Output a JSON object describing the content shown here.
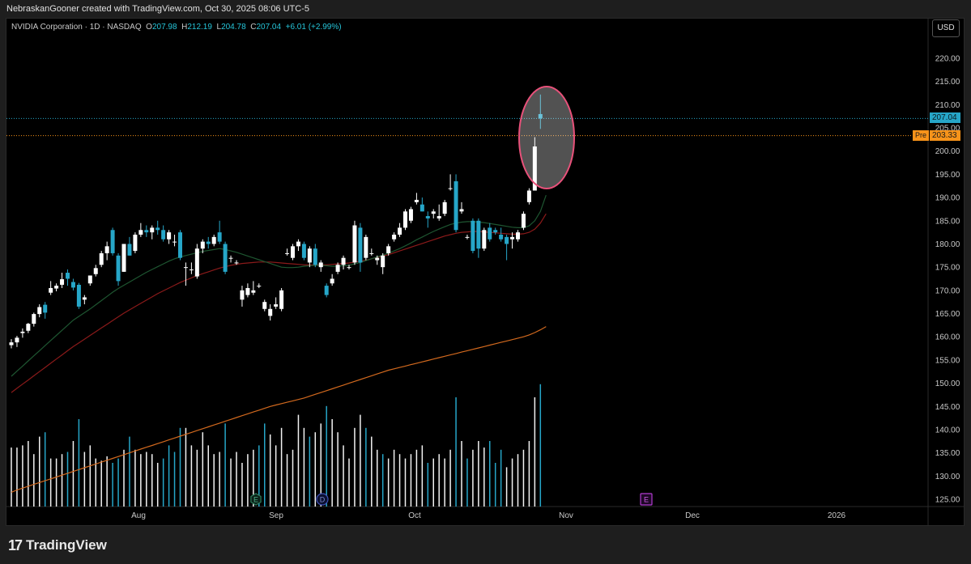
{
  "header": {
    "attribution": "NebraskanGooner created with TradingView.com, Oct 30, 2025 08:06 UTC-5"
  },
  "legend": {
    "symbol": "NVIDIA Corporation · 1D · NASDAQ",
    "open_label": "O",
    "open": "207.98",
    "high_label": "H",
    "high": "212.19",
    "low_label": "L",
    "low": "204.78",
    "close_label": "C",
    "close": "207.04",
    "change": "+6.01 (+2.99%)"
  },
  "currency_button": "USD",
  "last_price_tag": "207.04",
  "premarket": {
    "label": "Pre",
    "price": "203.33"
  },
  "footer": {
    "brand": "TradingView",
    "logo": "17"
  },
  "events": [
    {
      "letter": "E",
      "kind": "earnings-past"
    },
    {
      "letter": "D",
      "kind": "dividend"
    },
    {
      "letter": "E",
      "kind": "earnings-upcoming"
    }
  ],
  "colors": {
    "up_candle": "#ffffff",
    "down_candle": "#26a6c8",
    "ma_short": "#1e5631",
    "ma_mid": "#8b1a1a",
    "ma_long": "#d2691e",
    "highlight_ellipse": "#e8517a",
    "last_price_line": "#26a6c8",
    "premarket_line": "#f7931a"
  },
  "chart_data": {
    "type": "candlestick",
    "title": "",
    "y_axis_ticks": [
      "220.00",
      "215.00",
      "210.00",
      "205.00",
      "200.00",
      "195.00",
      "190.00",
      "185.00",
      "180.00",
      "175.00",
      "170.00",
      "165.00",
      "160.00",
      "155.00",
      "150.00",
      "145.00",
      "140.00",
      "135.00",
      "130.00",
      "125.00"
    ],
    "ylim": [
      123,
      224
    ],
    "x_axis_ticks": [
      "Aug",
      "Sep",
      "Oct",
      "Nov",
      "Dec",
      "2026"
    ],
    "last_price": 207.04,
    "premarket_price": 203.33,
    "candles": [
      {
        "o": 158.2,
        "h": 159.5,
        "l": 157.5,
        "c": 158.8
      },
      {
        "o": 158.8,
        "h": 160.2,
        "l": 157.8,
        "c": 159.8
      },
      {
        "o": 160.8,
        "h": 161.8,
        "l": 159.8,
        "c": 161.1
      },
      {
        "o": 161.3,
        "h": 163.0,
        "l": 160.8,
        "c": 162.8
      },
      {
        "o": 162.8,
        "h": 165.2,
        "l": 162.2,
        "c": 164.9
      },
      {
        "o": 164.9,
        "h": 167.0,
        "l": 164.2,
        "c": 166.4
      },
      {
        "o": 166.9,
        "h": 167.5,
        "l": 163.9,
        "c": 165.2
      },
      {
        "o": 169.5,
        "h": 172.0,
        "l": 169.0,
        "c": 170.5
      },
      {
        "o": 170.4,
        "h": 171.5,
        "l": 169.8,
        "c": 171.0
      },
      {
        "o": 171.2,
        "h": 173.8,
        "l": 170.5,
        "c": 172.4
      },
      {
        "o": 173.8,
        "h": 174.5,
        "l": 171.0,
        "c": 172.5
      },
      {
        "o": 171.8,
        "h": 172.5,
        "l": 170.0,
        "c": 170.6
      },
      {
        "o": 171.2,
        "h": 171.6,
        "l": 166.0,
        "c": 166.5
      },
      {
        "o": 168.0,
        "h": 169.0,
        "l": 167.0,
        "c": 168.5
      },
      {
        "o": 171.5,
        "h": 173.2,
        "l": 171.0,
        "c": 173.2
      },
      {
        "o": 173.5,
        "h": 175.5,
        "l": 173.0,
        "c": 174.8
      },
      {
        "o": 175.5,
        "h": 178.5,
        "l": 175.0,
        "c": 178.0
      },
      {
        "o": 178.0,
        "h": 180.5,
        "l": 176.5,
        "c": 179.5
      },
      {
        "o": 183.0,
        "h": 183.5,
        "l": 177.5,
        "c": 178.0
      },
      {
        "o": 177.5,
        "h": 178.0,
        "l": 171.0,
        "c": 172.0
      },
      {
        "o": 174.0,
        "h": 180.0,
        "l": 174.0,
        "c": 180.0
      },
      {
        "o": 180.0,
        "h": 181.5,
        "l": 177.5,
        "c": 177.5
      },
      {
        "o": 178.5,
        "h": 182.5,
        "l": 178.0,
        "c": 182.0
      },
      {
        "o": 182.0,
        "h": 184.5,
        "l": 181.5,
        "c": 183.0
      },
      {
        "o": 183.0,
        "h": 184.0,
        "l": 181.5,
        "c": 182.5
      },
      {
        "o": 182.5,
        "h": 184.0,
        "l": 181.0,
        "c": 183.5
      },
      {
        "o": 183.5,
        "h": 185.0,
        "l": 182.0,
        "c": 183.0
      },
      {
        "o": 183.0,
        "h": 184.0,
        "l": 180.5,
        "c": 181.0
      },
      {
        "o": 181.0,
        "h": 183.0,
        "l": 180.0,
        "c": 182.5
      },
      {
        "o": 180.5,
        "h": 182.0,
        "l": 179.5,
        "c": 180.5
      },
      {
        "o": 182.5,
        "h": 183.0,
        "l": 176.5,
        "c": 177.0
      },
      {
        "o": 175.0,
        "h": 176.0,
        "l": 171.0,
        "c": 175.0
      },
      {
        "o": 174.5,
        "h": 176.0,
        "l": 173.5,
        "c": 174.5
      },
      {
        "o": 173.0,
        "h": 180.0,
        "l": 172.5,
        "c": 179.0
      },
      {
        "o": 179.0,
        "h": 181.0,
        "l": 178.0,
        "c": 180.5
      },
      {
        "o": 180.5,
        "h": 181.5,
        "l": 179.0,
        "c": 180.0
      },
      {
        "o": 180.0,
        "h": 182.0,
        "l": 179.5,
        "c": 181.5
      },
      {
        "o": 182.5,
        "h": 185.0,
        "l": 180.0,
        "c": 180.5
      },
      {
        "o": 180.0,
        "h": 180.5,
        "l": 173.5,
        "c": 174.0
      },
      {
        "o": 177.0,
        "h": 177.5,
        "l": 176.0,
        "c": 177.0
      },
      {
        "o": 176.0,
        "h": 176.5,
        "l": 175.5,
        "c": 176.0
      },
      {
        "o": 168.0,
        "h": 171.0,
        "l": 166.5,
        "c": 170.0
      },
      {
        "o": 169.0,
        "h": 171.5,
        "l": 168.5,
        "c": 170.5
      },
      {
        "o": 169.5,
        "h": 172.0,
        "l": 169.0,
        "c": 170.0
      },
      {
        "o": 171.0,
        "h": 171.5,
        "l": 170.5,
        "c": 171.0
      },
      {
        "o": 166.0,
        "h": 168.0,
        "l": 165.5,
        "c": 167.5
      },
      {
        "o": 164.5,
        "h": 167.0,
        "l": 163.5,
        "c": 166.0
      },
      {
        "o": 166.5,
        "h": 168.5,
        "l": 166.0,
        "c": 167.0
      },
      {
        "o": 166.0,
        "h": 170.5,
        "l": 165.5,
        "c": 170.0
      },
      {
        "o": 178.0,
        "h": 179.0,
        "l": 177.5,
        "c": 178.0
      },
      {
        "o": 177.0,
        "h": 180.0,
        "l": 176.5,
        "c": 179.5
      },
      {
        "o": 179.5,
        "h": 181.0,
        "l": 178.5,
        "c": 180.5
      },
      {
        "o": 180.0,
        "h": 180.5,
        "l": 176.5,
        "c": 177.0
      },
      {
        "o": 176.0,
        "h": 179.5,
        "l": 175.0,
        "c": 179.0
      },
      {
        "o": 179.0,
        "h": 180.0,
        "l": 175.0,
        "c": 175.5
      },
      {
        "o": 175.0,
        "h": 176.5,
        "l": 174.0,
        "c": 176.0
      },
      {
        "o": 171.0,
        "h": 171.5,
        "l": 168.5,
        "c": 169.0
      },
      {
        "o": 171.5,
        "h": 173.5,
        "l": 171.0,
        "c": 172.5
      },
      {
        "o": 174.0,
        "h": 176.0,
        "l": 173.5,
        "c": 175.5
      },
      {
        "o": 175.5,
        "h": 177.5,
        "l": 174.5,
        "c": 177.0
      },
      {
        "o": 175.0,
        "h": 175.5,
        "l": 174.5,
        "c": 175.0
      },
      {
        "o": 176.0,
        "h": 185.0,
        "l": 175.5,
        "c": 184.0
      },
      {
        "o": 183.5,
        "h": 184.5,
        "l": 174.0,
        "c": 176.0
      },
      {
        "o": 177.0,
        "h": 182.0,
        "l": 176.5,
        "c": 181.5
      },
      {
        "o": 178.0,
        "h": 179.0,
        "l": 177.5,
        "c": 178.0
      },
      {
        "o": 176.5,
        "h": 177.5,
        "l": 175.5,
        "c": 177.0
      },
      {
        "o": 175.0,
        "h": 178.0,
        "l": 173.5,
        "c": 177.5
      },
      {
        "o": 178.0,
        "h": 180.0,
        "l": 177.5,
        "c": 179.5
      },
      {
        "o": 181.0,
        "h": 182.5,
        "l": 180.5,
        "c": 182.0
      },
      {
        "o": 182.0,
        "h": 184.5,
        "l": 181.5,
        "c": 183.5
      },
      {
        "o": 183.5,
        "h": 187.5,
        "l": 183.0,
        "c": 187.0
      },
      {
        "o": 185.0,
        "h": 188.0,
        "l": 184.5,
        "c": 187.5
      },
      {
        "o": 189.0,
        "h": 191.0,
        "l": 188.5,
        "c": 189.5
      },
      {
        "o": 188.5,
        "h": 190.0,
        "l": 187.0,
        "c": 187.0
      },
      {
        "o": 186.0,
        "h": 187.0,
        "l": 183.5,
        "c": 185.5
      },
      {
        "o": 186.5,
        "h": 187.5,
        "l": 185.5,
        "c": 187.0
      },
      {
        "o": 185.5,
        "h": 188.5,
        "l": 185.0,
        "c": 186.0
      },
      {
        "o": 186.5,
        "h": 189.5,
        "l": 186.0,
        "c": 189.0
      },
      {
        "o": 192.0,
        "h": 195.0,
        "l": 191.5,
        "c": 192.0
      },
      {
        "o": 193.5,
        "h": 195.0,
        "l": 182.5,
        "c": 183.0
      },
      {
        "o": 187.0,
        "h": 189.0,
        "l": 186.5,
        "c": 187.5
      },
      {
        "o": 181.5,
        "h": 182.0,
        "l": 181.0,
        "c": 181.5
      },
      {
        "o": 185.0,
        "h": 185.5,
        "l": 178.0,
        "c": 178.5
      },
      {
        "o": 185.0,
        "h": 185.5,
        "l": 177.0,
        "c": 179.0
      },
      {
        "o": 179.0,
        "h": 183.5,
        "l": 178.5,
        "c": 183.0
      },
      {
        "o": 183.5,
        "h": 184.5,
        "l": 180.5,
        "c": 181.0
      },
      {
        "o": 183.0,
        "h": 183.5,
        "l": 182.0,
        "c": 182.5
      },
      {
        "o": 182.0,
        "h": 183.5,
        "l": 180.5,
        "c": 181.0
      },
      {
        "o": 181.5,
        "h": 182.0,
        "l": 176.5,
        "c": 180.0
      },
      {
        "o": 181.0,
        "h": 182.5,
        "l": 179.0,
        "c": 181.5
      },
      {
        "o": 181.0,
        "h": 183.0,
        "l": 180.5,
        "c": 182.5
      },
      {
        "o": 183.5,
        "h": 187.0,
        "l": 183.0,
        "c": 186.5
      },
      {
        "o": 189.0,
        "h": 192.0,
        "l": 188.5,
        "c": 191.5
      },
      {
        "o": 191.5,
        "h": 203.0,
        "l": 191.5,
        "c": 201.0
      },
      {
        "o": 207.98,
        "h": 212.19,
        "l": 204.78,
        "c": 207.04
      }
    ],
    "volume": [
      {
        "v": 0.27,
        "up": true
      },
      {
        "v": 0.27,
        "up": true
      },
      {
        "v": 0.28,
        "up": true
      },
      {
        "v": 0.3,
        "up": true
      },
      {
        "v": 0.24,
        "up": true
      },
      {
        "v": 0.32,
        "up": true
      },
      {
        "v": 0.34,
        "up": false
      },
      {
        "v": 0.22,
        "up": true
      },
      {
        "v": 0.22,
        "up": true
      },
      {
        "v": 0.24,
        "up": true
      },
      {
        "v": 0.25,
        "up": false
      },
      {
        "v": 0.3,
        "up": true
      },
      {
        "v": 0.4,
        "up": false
      },
      {
        "v": 0.25,
        "up": true
      },
      {
        "v": 0.28,
        "up": true
      },
      {
        "v": 0.22,
        "up": true
      },
      {
        "v": 0.21,
        "up": true
      },
      {
        "v": 0.23,
        "up": true
      },
      {
        "v": 0.2,
        "up": false
      },
      {
        "v": 0.22,
        "up": false
      },
      {
        "v": 0.26,
        "up": true
      },
      {
        "v": 0.32,
        "up": false
      },
      {
        "v": 0.26,
        "up": true
      },
      {
        "v": 0.24,
        "up": true
      },
      {
        "v": 0.25,
        "up": true
      },
      {
        "v": 0.24,
        "up": true
      },
      {
        "v": 0.2,
        "up": true
      },
      {
        "v": 0.22,
        "up": false
      },
      {
        "v": 0.28,
        "up": false
      },
      {
        "v": 0.25,
        "up": false
      },
      {
        "v": 0.36,
        "up": false
      },
      {
        "v": 0.36,
        "up": true
      },
      {
        "v": 0.28,
        "up": true
      },
      {
        "v": 0.26,
        "up": true
      },
      {
        "v": 0.34,
        "up": true
      },
      {
        "v": 0.28,
        "up": true
      },
      {
        "v": 0.24,
        "up": true
      },
      {
        "v": 0.25,
        "up": true
      },
      {
        "v": 0.38,
        "up": false
      },
      {
        "v": 0.22,
        "up": true
      },
      {
        "v": 0.25,
        "up": true
      },
      {
        "v": 0.2,
        "up": true
      },
      {
        "v": 0.24,
        "up": true
      },
      {
        "v": 0.26,
        "up": true
      },
      {
        "v": 0.28,
        "up": false
      },
      {
        "v": 0.38,
        "up": false
      },
      {
        "v": 0.33,
        "up": true
      },
      {
        "v": 0.28,
        "up": true
      },
      {
        "v": 0.36,
        "up": true
      },
      {
        "v": 0.24,
        "up": true
      },
      {
        "v": 0.26,
        "up": true
      },
      {
        "v": 0.42,
        "up": true
      },
      {
        "v": 0.36,
        "up": true
      },
      {
        "v": 0.32,
        "up": false
      },
      {
        "v": 0.34,
        "up": true
      },
      {
        "v": 0.38,
        "up": true
      },
      {
        "v": 0.46,
        "up": false
      },
      {
        "v": 0.4,
        "up": true
      },
      {
        "v": 0.34,
        "up": true
      },
      {
        "v": 0.28,
        "up": true
      },
      {
        "v": 0.22,
        "up": true
      },
      {
        "v": 0.36,
        "up": true
      },
      {
        "v": 0.42,
        "up": true
      },
      {
        "v": 0.36,
        "up": false
      },
      {
        "v": 0.32,
        "up": true
      },
      {
        "v": 0.26,
        "up": true
      },
      {
        "v": 0.24,
        "up": false
      },
      {
        "v": 0.22,
        "up": true
      },
      {
        "v": 0.26,
        "up": true
      },
      {
        "v": 0.24,
        "up": true
      },
      {
        "v": 0.22,
        "up": true
      },
      {
        "v": 0.24,
        "up": true
      },
      {
        "v": 0.26,
        "up": true
      },
      {
        "v": 0.28,
        "up": true
      },
      {
        "v": 0.2,
        "up": false
      },
      {
        "v": 0.22,
        "up": true
      },
      {
        "v": 0.24,
        "up": true
      },
      {
        "v": 0.22,
        "up": true
      },
      {
        "v": 0.26,
        "up": true
      },
      {
        "v": 0.5,
        "up": false
      },
      {
        "v": 0.3,
        "up": true
      },
      {
        "v": 0.22,
        "up": false
      },
      {
        "v": 0.26,
        "up": true
      },
      {
        "v": 0.3,
        "up": true
      },
      {
        "v": 0.27,
        "up": true
      },
      {
        "v": 0.3,
        "up": false
      },
      {
        "v": 0.2,
        "up": false
      },
      {
        "v": 0.26,
        "up": false
      },
      {
        "v": 0.18,
        "up": true
      },
      {
        "v": 0.22,
        "up": true
      },
      {
        "v": 0.24,
        "up": true
      },
      {
        "v": 0.26,
        "up": true
      },
      {
        "v": 0.3,
        "up": true
      },
      {
        "v": 0.5,
        "up": true
      },
      {
        "v": 0.56,
        "up": false
      }
    ],
    "ma_short": [
      151.5,
      152.6,
      153.7,
      154.8,
      155.9,
      157.0,
      158.1,
      159.2,
      160.3,
      161.4,
      162.5,
      163.6,
      164.4,
      165.2,
      166.0,
      166.9,
      167.8,
      168.7,
      169.6,
      170.4,
      171.1,
      171.8,
      172.5,
      173.2,
      173.9,
      174.5,
      175.1,
      175.7,
      176.3,
      176.8,
      177.2,
      177.5,
      177.8,
      178.1,
      178.4,
      178.6,
      178.8,
      179.0,
      178.8,
      178.5,
      178.2,
      177.8,
      177.4,
      177.0,
      176.6,
      176.2,
      175.8,
      175.4,
      175.0,
      174.9,
      174.9,
      175.0,
      175.2,
      175.3,
      175.4,
      175.4,
      175.3,
      175.2,
      175.2,
      175.3,
      175.4,
      175.7,
      176.0,
      176.4,
      176.8,
      177.2,
      177.6,
      178.0,
      178.5,
      179.0,
      179.6,
      180.2,
      180.9,
      181.5,
      182.1,
      182.7,
      183.2,
      183.7,
      184.2,
      184.5,
      184.7,
      184.8,
      184.8,
      184.7,
      184.6,
      184.4,
      184.2,
      184.0,
      183.8,
      183.6,
      183.5,
      183.5,
      183.9,
      185.0,
      187.0,
      190.5
    ],
    "ma_mid": [
      148.0,
      148.9,
      149.8,
      150.7,
      151.6,
      152.5,
      153.4,
      154.3,
      155.2,
      156.1,
      157.0,
      157.9,
      158.7,
      159.5,
      160.3,
      161.1,
      161.9,
      162.7,
      163.5,
      164.3,
      165.1,
      165.8,
      166.5,
      167.2,
      167.9,
      168.6,
      169.3,
      169.9,
      170.5,
      171.1,
      171.7,
      172.2,
      172.7,
      173.2,
      173.6,
      174.0,
      174.4,
      174.8,
      175.1,
      175.4,
      175.6,
      175.8,
      175.9,
      176.0,
      176.1,
      176.1,
      176.1,
      176.0,
      175.9,
      175.8,
      175.7,
      175.6,
      175.5,
      175.5,
      175.5,
      175.5,
      175.5,
      175.6,
      175.7,
      175.8,
      175.9,
      176.1,
      176.3,
      176.5,
      176.8,
      177.1,
      177.4,
      177.7,
      178.1,
      178.5,
      178.9,
      179.3,
      179.7,
      180.1,
      180.5,
      180.9,
      181.3,
      181.7,
      182.0,
      182.3,
      182.5,
      182.6,
      182.7,
      182.7,
      182.6,
      182.5,
      182.4,
      182.3,
      182.2,
      182.1,
      182.1,
      182.2,
      182.5,
      183.2,
      184.5,
      186.5
    ],
    "ma_long": [
      126.5,
      127.0,
      127.4,
      127.8,
      128.2,
      128.6,
      129.0,
      129.4,
      129.8,
      130.2,
      130.6,
      131.0,
      131.4,
      131.8,
      132.2,
      132.6,
      133.0,
      133.4,
      133.8,
      134.2,
      134.6,
      135.0,
      135.4,
      135.8,
      136.2,
      136.6,
      137.0,
      137.4,
      137.8,
      138.2,
      138.6,
      139.0,
      139.4,
      139.8,
      140.2,
      140.6,
      141.0,
      141.4,
      141.8,
      142.2,
      142.6,
      143.0,
      143.4,
      143.8,
      144.2,
      144.6,
      145.0,
      145.3,
      145.6,
      145.9,
      146.2,
      146.5,
      146.8,
      147.2,
      147.6,
      148.0,
      148.4,
      148.8,
      149.2,
      149.6,
      150.0,
      150.4,
      150.8,
      151.2,
      151.6,
      152.0,
      152.4,
      152.8,
      153.1,
      153.4,
      153.7,
      154.0,
      154.3,
      154.6,
      154.9,
      155.2,
      155.5,
      155.8,
      156.1,
      156.4,
      156.7,
      157.0,
      157.3,
      157.6,
      157.9,
      158.2,
      158.5,
      158.8,
      159.1,
      159.4,
      159.7,
      160.0,
      160.4,
      160.9,
      161.5,
      162.2
    ]
  }
}
